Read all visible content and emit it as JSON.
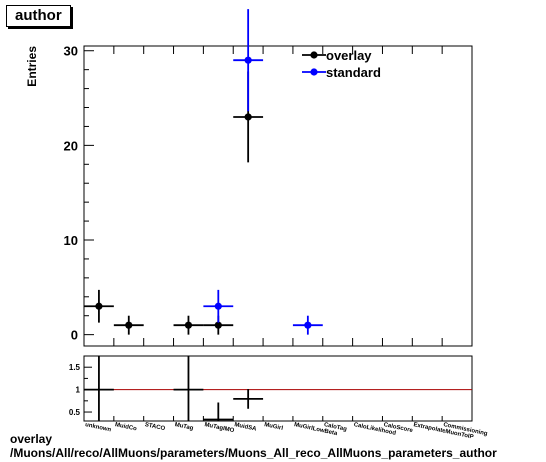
{
  "title": "author",
  "footer": {
    "line1": "overlay",
    "line2": "/Muons/All/reco/AllMuons/parameters/Muons_All_reco_AllMuons_parameters_author"
  },
  "colors": {
    "overlay": "#000000",
    "standard": "#0000ff",
    "ratio_line": "#aa0000"
  },
  "chart_data": [
    {
      "type": "scatter",
      "ylabel": "Entries",
      "ylim": [
        -1.2,
        30.5
      ],
      "yticks": [
        0,
        10,
        20,
        30
      ],
      "categories": [
        "unknown",
        "MuidCo",
        "STACO",
        "MuTag",
        "MuTagIMO",
        "MuidSA",
        "MuGirl",
        "MuGirlLowBeta",
        "CaloTag",
        "CaloLikelihood",
        "CaloScore",
        "ExtrapolateMuonToIP",
        "Commissioning"
      ],
      "legend": {
        "placement": "top-right"
      },
      "series": [
        {
          "name": "overlay",
          "color": "#000000",
          "points": [
            {
              "x": 1,
              "y": 3,
              "err": 1.73
            },
            {
              "x": 2,
              "y": 1,
              "err": 1
            },
            {
              "x": 4,
              "y": 1,
              "err": 1
            },
            {
              "x": 5,
              "y": 1,
              "err": 1
            },
            {
              "x": 6,
              "y": 23,
              "err": 4.8
            }
          ]
        },
        {
          "name": "standard",
          "color": "#0000ff",
          "points": [
            {
              "x": 5,
              "y": 3,
              "err": 1.73
            },
            {
              "x": 6,
              "y": 29,
              "err": 5.39
            },
            {
              "x": 8,
              "y": 1,
              "err": 1
            }
          ]
        }
      ]
    },
    {
      "type": "scatter",
      "ylim": [
        0.3,
        1.75
      ],
      "yticks": [
        0.5,
        1,
        1.5
      ],
      "reference_line": 1,
      "points": [
        {
          "x": 1,
          "y": 1,
          "err": 1
        },
        {
          "x": 4,
          "y": 1,
          "err": 1
        },
        {
          "x": 5,
          "y": 0.333,
          "err": 0.38
        },
        {
          "x": 6,
          "y": 0.793,
          "err": 0.22
        }
      ]
    }
  ]
}
